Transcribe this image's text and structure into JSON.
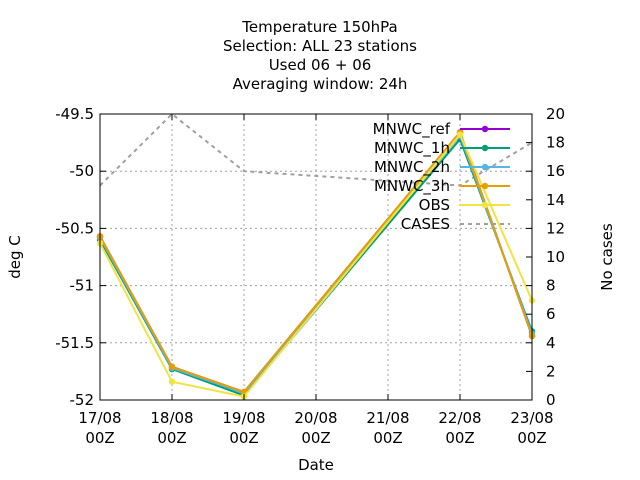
{
  "chart_data": {
    "type": "line",
    "title_lines": [
      "Temperature 150hPa",
      "Selection: ALL      23 stations",
      "Used  06 + 06",
      "Averaging window: 24h"
    ],
    "xlabel": "Date",
    "ylabel": "deg C",
    "y2label": "No cases",
    "x_ticks": [
      {
        "line1": "17/08",
        "line2": "00Z"
      },
      {
        "line1": "18/08",
        "line2": "00Z"
      },
      {
        "line1": "19/08",
        "line2": "00Z"
      },
      {
        "line1": "20/08",
        "line2": "00Z"
      },
      {
        "line1": "21/08",
        "line2": "00Z"
      },
      {
        "line1": "22/08",
        "line2": "00Z"
      },
      {
        "line1": "23/08",
        "line2": "00Z"
      }
    ],
    "ylim": [
      -52,
      -49.5
    ],
    "y_ticks": [
      "-49.5",
      "-50",
      "-50.5",
      "-51",
      "-51.5",
      "-52"
    ],
    "y2lim": [
      0,
      20
    ],
    "y2_ticks": [
      "20",
      "18",
      "16",
      "14",
      "12",
      "10",
      "8",
      "6",
      "4",
      "2",
      "0"
    ],
    "grid": true,
    "legend_position": "top-right",
    "series": [
      {
        "name": "MNWC_ref",
        "color": "#9400d3",
        "axis": "y",
        "dash": false,
        "x": [
          0,
          1,
          2,
          5,
          6
        ],
        "values": [
          -50.57,
          -51.71,
          -51.93,
          -49.66,
          -51.44
        ]
      },
      {
        "name": "MNWC_1h",
        "color": "#009e73",
        "axis": "y",
        "dash": false,
        "x": [
          0,
          1,
          2,
          5,
          6
        ],
        "values": [
          -50.6,
          -51.73,
          -51.96,
          -49.72,
          -51.4
        ]
      },
      {
        "name": "MNWC_2h",
        "color": "#56b4e9",
        "axis": "y",
        "dash": false,
        "x": [
          0,
          1,
          2,
          5,
          6
        ],
        "values": [
          -50.58,
          -51.72,
          -51.94,
          -49.69,
          -51.42
        ]
      },
      {
        "name": "MNWC_3h",
        "color": "#e69f00",
        "axis": "y",
        "dash": false,
        "x": [
          0,
          1,
          2,
          5,
          6
        ],
        "values": [
          -50.57,
          -51.71,
          -51.93,
          -49.66,
          -51.44
        ]
      },
      {
        "name": "OBS",
        "color": "#f0e442",
        "axis": "y",
        "dash": false,
        "x": [
          0,
          1,
          2,
          5,
          6
        ],
        "values": [
          -50.63,
          -51.84,
          -51.97,
          -49.68,
          -51.13
        ]
      },
      {
        "name": "CASES",
        "color": "#a0a0a0",
        "axis": "y2",
        "dash": true,
        "x": [
          0,
          1,
          2,
          5,
          6
        ],
        "values": [
          15,
          20,
          16,
          15,
          18
        ]
      }
    ]
  }
}
